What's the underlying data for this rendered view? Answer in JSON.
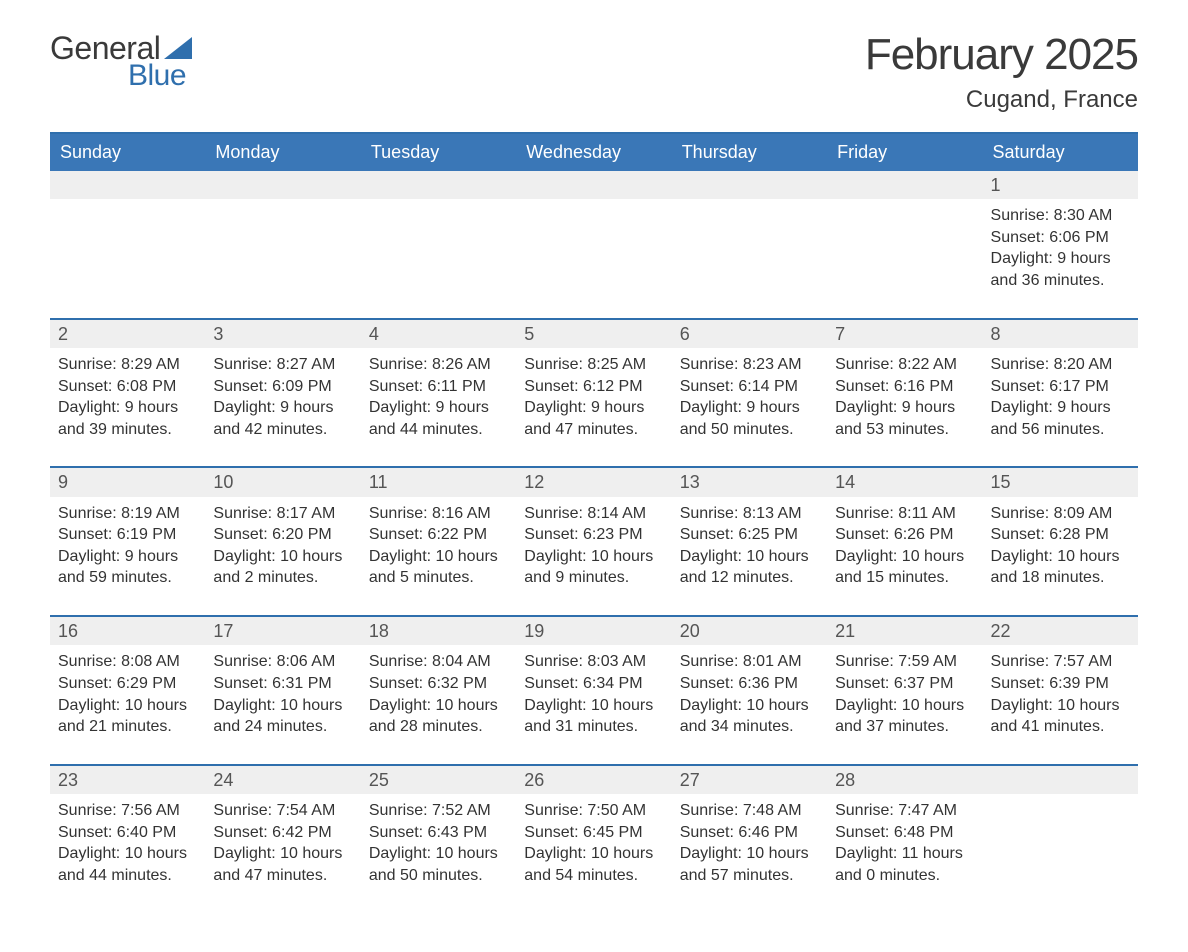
{
  "logo": {
    "word1": "General",
    "word2": "Blue",
    "word1_color": "#3a3a3a",
    "word2_color": "#2f6fad",
    "sail_color": "#2f6fad"
  },
  "title": "February 2025",
  "location": "Cugand, France",
  "colors": {
    "header_bg": "#3a77b7",
    "header_text": "#ffffff",
    "row_divider": "#2f6fad",
    "daynum_bg": "#efefef",
    "body_text": "#333333",
    "page_bg": "#ffffff"
  },
  "typography": {
    "title_fontsize": 44,
    "location_fontsize": 24,
    "dayheader_fontsize": 18,
    "cell_fontsize": 16
  },
  "layout": {
    "columns": 7,
    "weeks": 5,
    "first_day_column_index": 6
  },
  "day_headers": [
    "Sunday",
    "Monday",
    "Tuesday",
    "Wednesday",
    "Thursday",
    "Friday",
    "Saturday"
  ],
  "label_sunrise": "Sunrise: ",
  "label_sunset": "Sunset: ",
  "label_daylight": "Daylight: ",
  "days": [
    {
      "n": 1,
      "sunrise": "8:30 AM",
      "sunset": "6:06 PM",
      "daylight": "9 hours and 36 minutes."
    },
    {
      "n": 2,
      "sunrise": "8:29 AM",
      "sunset": "6:08 PM",
      "daylight": "9 hours and 39 minutes."
    },
    {
      "n": 3,
      "sunrise": "8:27 AM",
      "sunset": "6:09 PM",
      "daylight": "9 hours and 42 minutes."
    },
    {
      "n": 4,
      "sunrise": "8:26 AM",
      "sunset": "6:11 PM",
      "daylight": "9 hours and 44 minutes."
    },
    {
      "n": 5,
      "sunrise": "8:25 AM",
      "sunset": "6:12 PM",
      "daylight": "9 hours and 47 minutes."
    },
    {
      "n": 6,
      "sunrise": "8:23 AM",
      "sunset": "6:14 PM",
      "daylight": "9 hours and 50 minutes."
    },
    {
      "n": 7,
      "sunrise": "8:22 AM",
      "sunset": "6:16 PM",
      "daylight": "9 hours and 53 minutes."
    },
    {
      "n": 8,
      "sunrise": "8:20 AM",
      "sunset": "6:17 PM",
      "daylight": "9 hours and 56 minutes."
    },
    {
      "n": 9,
      "sunrise": "8:19 AM",
      "sunset": "6:19 PM",
      "daylight": "9 hours and 59 minutes."
    },
    {
      "n": 10,
      "sunrise": "8:17 AM",
      "sunset": "6:20 PM",
      "daylight": "10 hours and 2 minutes."
    },
    {
      "n": 11,
      "sunrise": "8:16 AM",
      "sunset": "6:22 PM",
      "daylight": "10 hours and 5 minutes."
    },
    {
      "n": 12,
      "sunrise": "8:14 AM",
      "sunset": "6:23 PM",
      "daylight": "10 hours and 9 minutes."
    },
    {
      "n": 13,
      "sunrise": "8:13 AM",
      "sunset": "6:25 PM",
      "daylight": "10 hours and 12 minutes."
    },
    {
      "n": 14,
      "sunrise": "8:11 AM",
      "sunset": "6:26 PM",
      "daylight": "10 hours and 15 minutes."
    },
    {
      "n": 15,
      "sunrise": "8:09 AM",
      "sunset": "6:28 PM",
      "daylight": "10 hours and 18 minutes."
    },
    {
      "n": 16,
      "sunrise": "8:08 AM",
      "sunset": "6:29 PM",
      "daylight": "10 hours and 21 minutes."
    },
    {
      "n": 17,
      "sunrise": "8:06 AM",
      "sunset": "6:31 PM",
      "daylight": "10 hours and 24 minutes."
    },
    {
      "n": 18,
      "sunrise": "8:04 AM",
      "sunset": "6:32 PM",
      "daylight": "10 hours and 28 minutes."
    },
    {
      "n": 19,
      "sunrise": "8:03 AM",
      "sunset": "6:34 PM",
      "daylight": "10 hours and 31 minutes."
    },
    {
      "n": 20,
      "sunrise": "8:01 AM",
      "sunset": "6:36 PM",
      "daylight": "10 hours and 34 minutes."
    },
    {
      "n": 21,
      "sunrise": "7:59 AM",
      "sunset": "6:37 PM",
      "daylight": "10 hours and 37 minutes."
    },
    {
      "n": 22,
      "sunrise": "7:57 AM",
      "sunset": "6:39 PM",
      "daylight": "10 hours and 41 minutes."
    },
    {
      "n": 23,
      "sunrise": "7:56 AM",
      "sunset": "6:40 PM",
      "daylight": "10 hours and 44 minutes."
    },
    {
      "n": 24,
      "sunrise": "7:54 AM",
      "sunset": "6:42 PM",
      "daylight": "10 hours and 47 minutes."
    },
    {
      "n": 25,
      "sunrise": "7:52 AM",
      "sunset": "6:43 PM",
      "daylight": "10 hours and 50 minutes."
    },
    {
      "n": 26,
      "sunrise": "7:50 AM",
      "sunset": "6:45 PM",
      "daylight": "10 hours and 54 minutes."
    },
    {
      "n": 27,
      "sunrise": "7:48 AM",
      "sunset": "6:46 PM",
      "daylight": "10 hours and 57 minutes."
    },
    {
      "n": 28,
      "sunrise": "7:47 AM",
      "sunset": "6:48 PM",
      "daylight": "11 hours and 0 minutes."
    }
  ]
}
